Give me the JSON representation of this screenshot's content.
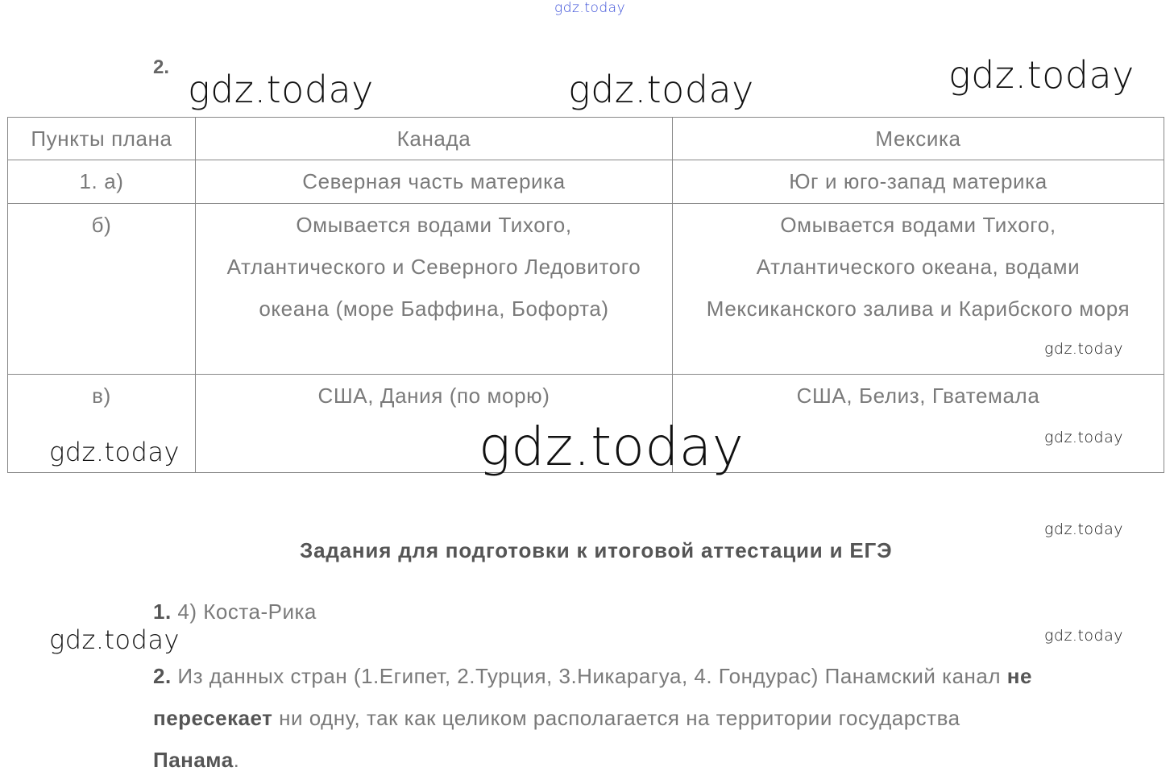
{
  "watermark": "gdz.today",
  "task_number": "2.",
  "table": {
    "headers": [
      "Пункты плана",
      "Канада",
      "Мексика"
    ],
    "rows": [
      {
        "point": "1. а)",
        "canada": "Северная часть материка",
        "mexico": "Юг и юго-запад материка"
      },
      {
        "point": "б)",
        "canada": "Омывается водами Тихого, Атлантического и Северного Ледовитого океана (море Баффина, Бофорта)",
        "mexico": "Омывается водами Тихого, Атлантического океана, водами Мексиканского залива и Карибского моря"
      },
      {
        "point": "в)",
        "canada": "США, Дания (по морю)",
        "mexico": "США, Белиз, Гватемала"
      }
    ]
  },
  "section_title": "Задания для подготовки к итоговой аттестации и ЕГЭ",
  "answers": [
    {
      "number": "1.",
      "text": "4) Коста-Рика"
    },
    {
      "number": "2.",
      "text_parts": [
        "Из данных стран (1.Египет, 2.Турция, 3.Никарагуа, 4. Гондурас) Панамский канал ",
        "не пересекает",
        " ни одну, так как целиком располагается на территории государства ",
        "Панама",
        "."
      ]
    }
  ]
}
